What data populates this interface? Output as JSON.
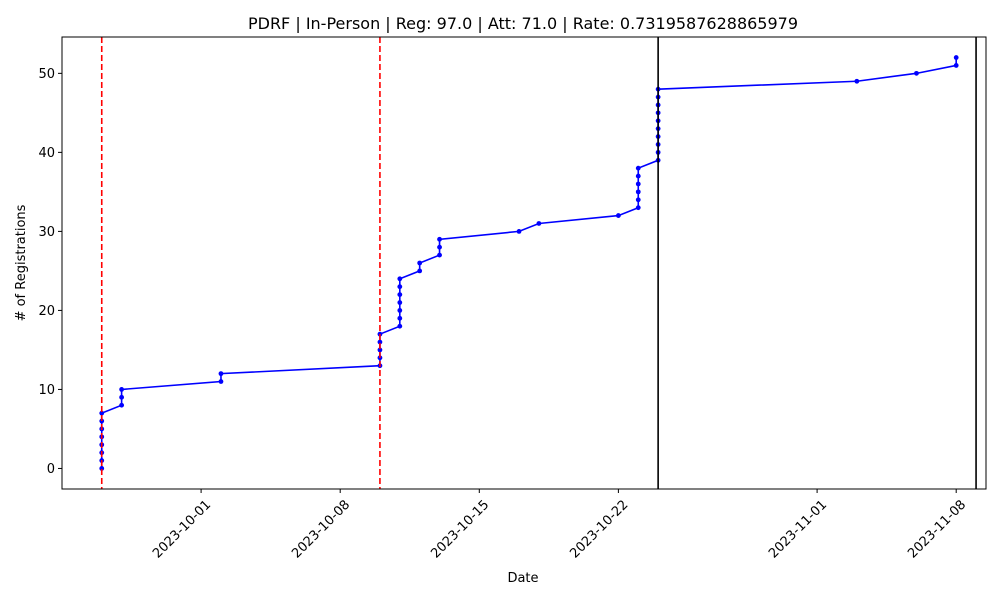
{
  "chart_data": {
    "type": "line",
    "title": "PDRF | In-Person | Reg: 97.0 | Att: 71.0 | Rate: 0.7319587628865979",
    "xlabel": "Date",
    "ylabel": "# of Registrations",
    "xlim": [
      "2023-09-24T00:00",
      "2023-11-09T12:00"
    ],
    "ylim": [
      -2.6,
      54.6
    ],
    "x_ticks": [
      "2023-10-01",
      "2023-10-08",
      "2023-10-15",
      "2023-10-22",
      "2023-11-01",
      "2023-11-08"
    ],
    "y_ticks": [
      0,
      10,
      20,
      30,
      40,
      50
    ],
    "grid": false,
    "series_color": "#0000ff",
    "series": [
      {
        "points": [
          [
            "2023-09-26",
            0
          ],
          [
            "2023-09-26",
            1
          ],
          [
            "2023-09-26",
            2
          ],
          [
            "2023-09-26",
            3
          ],
          [
            "2023-09-26",
            4
          ],
          [
            "2023-09-26",
            5
          ],
          [
            "2023-09-26",
            6
          ],
          [
            "2023-09-26",
            7
          ],
          [
            "2023-09-27",
            8
          ],
          [
            "2023-09-27",
            9
          ],
          [
            "2023-09-27",
            10
          ],
          [
            "2023-10-02",
            11
          ],
          [
            "2023-10-02",
            12
          ],
          [
            "2023-10-10",
            13
          ],
          [
            "2023-10-10",
            14
          ],
          [
            "2023-10-10",
            15
          ],
          [
            "2023-10-10",
            16
          ],
          [
            "2023-10-10",
            17
          ],
          [
            "2023-10-11",
            18
          ],
          [
            "2023-10-11",
            19
          ],
          [
            "2023-10-11",
            20
          ],
          [
            "2023-10-11",
            21
          ],
          [
            "2023-10-11",
            22
          ],
          [
            "2023-10-11",
            23
          ],
          [
            "2023-10-11",
            24
          ],
          [
            "2023-10-12",
            25
          ],
          [
            "2023-10-12",
            26
          ],
          [
            "2023-10-13",
            27
          ],
          [
            "2023-10-13",
            28
          ],
          [
            "2023-10-13",
            29
          ],
          [
            "2023-10-17",
            30
          ],
          [
            "2023-10-18",
            31
          ],
          [
            "2023-10-22",
            32
          ],
          [
            "2023-10-23",
            33
          ],
          [
            "2023-10-23",
            34
          ],
          [
            "2023-10-23",
            35
          ],
          [
            "2023-10-23",
            36
          ],
          [
            "2023-10-23",
            37
          ],
          [
            "2023-10-23",
            38
          ],
          [
            "2023-10-24",
            39
          ],
          [
            "2023-10-24",
            40
          ],
          [
            "2023-10-24",
            41
          ],
          [
            "2023-10-24",
            42
          ],
          [
            "2023-10-24",
            43
          ],
          [
            "2023-10-24",
            44
          ],
          [
            "2023-10-24",
            45
          ],
          [
            "2023-10-24",
            46
          ],
          [
            "2023-10-24",
            47
          ],
          [
            "2023-10-24",
            48
          ],
          [
            "2023-11-03",
            49
          ],
          [
            "2023-11-06",
            50
          ],
          [
            "2023-11-08",
            51
          ],
          [
            "2023-11-08",
            52
          ]
        ]
      }
    ],
    "reference_lines": [
      {
        "x": "2023-09-26",
        "color": "#ff0000",
        "style": "dashed"
      },
      {
        "x": "2023-10-10",
        "color": "#ff0000",
        "style": "dashed"
      },
      {
        "x": "2023-10-24",
        "color": "#000000",
        "style": "solid"
      },
      {
        "x": "2023-11-09",
        "color": "#000000",
        "style": "solid"
      }
    ]
  }
}
